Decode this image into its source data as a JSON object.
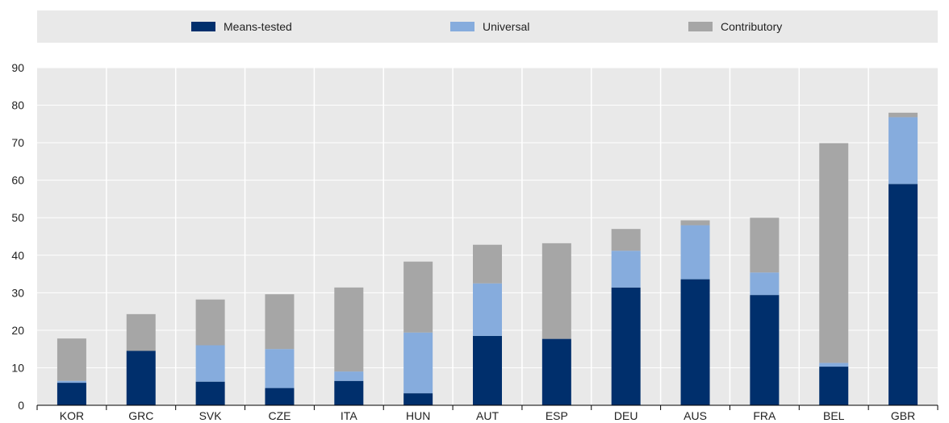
{
  "chart_data": {
    "type": "bar",
    "stacked": true,
    "categories": [
      "KOR",
      "GRC",
      "SVK",
      "CZE",
      "ITA",
      "HUN",
      "AUT",
      "ESP",
      "DEU",
      "AUS",
      "FRA",
      "BEL",
      "GBR"
    ],
    "series": [
      {
        "name": "Means-tested",
        "color": "#002f6c",
        "values": [
          6.0,
          14.5,
          6.3,
          4.6,
          6.5,
          3.2,
          18.5,
          17.7,
          31.4,
          33.6,
          29.4,
          10.3,
          59.0
        ]
      },
      {
        "name": "Universal",
        "color": "#86acdd",
        "values": [
          0.5,
          0.0,
          9.7,
          10.4,
          2.5,
          16.2,
          14.0,
          0.0,
          9.8,
          14.4,
          6.0,
          1.0,
          17.8
        ]
      },
      {
        "name": "Contributory",
        "color": "#a6a6a6",
        "values": [
          11.3,
          9.8,
          12.2,
          14.6,
          22.4,
          18.9,
          10.3,
          25.5,
          5.8,
          1.3,
          14.6,
          58.6,
          1.2
        ]
      }
    ],
    "title": "",
    "xlabel": "",
    "ylabel": "",
    "ylim": [
      0,
      90
    ],
    "yticks": [
      0,
      10,
      20,
      30,
      40,
      50,
      60,
      70,
      80,
      90
    ],
    "grid": true,
    "legend_position": "top",
    "plot_background": "#e9e9e9",
    "legend_background": "#e9e9e9"
  }
}
